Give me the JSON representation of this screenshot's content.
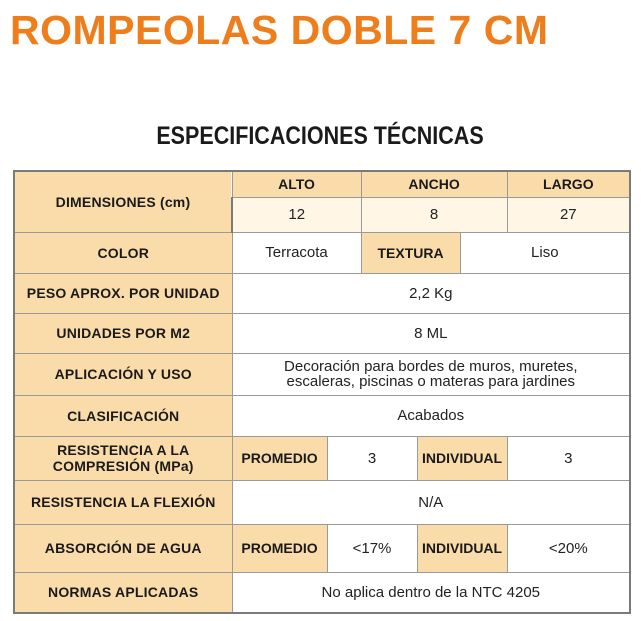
{
  "header": {
    "title": "ROMPEOLAS DOBLE  7 CM",
    "subtitle": "ESPECIFICACIONES TÉCNICAS"
  },
  "specs": {
    "dimensions": {
      "label": "DIMENSIONES (cm)",
      "alto_label": "ALTO",
      "ancho_label": "ANCHO",
      "largo_label": "LARGO",
      "alto": "12",
      "ancho": "8",
      "largo": "27"
    },
    "color": {
      "label": "COLOR",
      "value": "Terracota",
      "textura_label": "TEXTURA",
      "textura_value": "Liso"
    },
    "peso": {
      "label": "PESO APROX. POR UNIDAD",
      "value": "2,2 Kg"
    },
    "unidades": {
      "label": "UNIDADES POR M2",
      "value": "8 ML"
    },
    "aplicacion": {
      "label": "APLICACIÓN Y USO",
      "line1": "Decoración para bordes de muros, muretes,",
      "line2": "escaleras, piscinas o materas para jardines"
    },
    "clasificacion": {
      "label": "CLASIFICACIÓN",
      "value": "Acabados"
    },
    "compresion": {
      "label_line1": "RESISTENCIA A LA",
      "label_line2": "COMPRESIÓN (MPa)",
      "promedio_label": "PROMEDIO",
      "promedio_value": "3",
      "individual_label": "INDIVIDUAL",
      "individual_value": "3"
    },
    "flexion": {
      "label": "RESISTENCIA LA FLEXIÓN",
      "value": "N/A"
    },
    "absorcion": {
      "label": "ABSORCIÓN DE AGUA",
      "promedio_label": "PROMEDIO",
      "promedio_value": "<17%",
      "individual_label": "INDIVIDUAL",
      "individual_value": "<20%"
    },
    "normas": {
      "label": "NORMAS APLICADAS",
      "value": "No aplica dentro de la NTC 4205"
    }
  },
  "colors": {
    "title_orange": "#ee7d1b",
    "label_fill": "#fadcaa",
    "subvalue_fill": "#fff6e6",
    "border": "#9a9a9a"
  }
}
